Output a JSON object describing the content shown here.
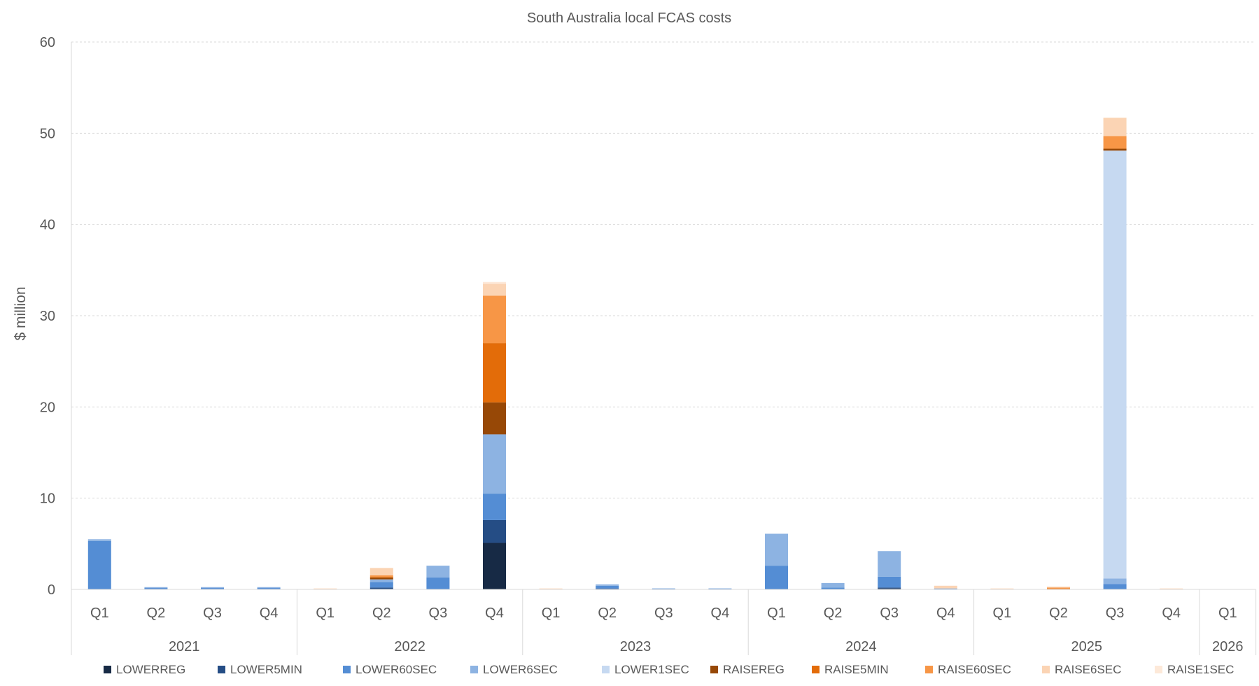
{
  "chart_data": {
    "type": "bar",
    "stacked": true,
    "title": "South Australia local FCAS costs",
    "xlabel": "",
    "ylabel": "$ million",
    "ylim": [
      0,
      60
    ],
    "yticks": [
      0,
      10,
      20,
      30,
      40,
      50,
      60
    ],
    "grid": "horizontal dashed",
    "legend_position": "bottom",
    "categories": [
      "Q1",
      "Q2",
      "Q3",
      "Q4",
      "Q1",
      "Q2",
      "Q3",
      "Q4",
      "Q1",
      "Q2",
      "Q3",
      "Q4",
      "Q1",
      "Q2",
      "Q3",
      "Q4",
      "Q1",
      "Q2",
      "Q3",
      "Q4",
      "Q1"
    ],
    "years": [
      {
        "label": "2021",
        "count": 4
      },
      {
        "label": "2022",
        "count": 4
      },
      {
        "label": "2023",
        "count": 4
      },
      {
        "label": "2024",
        "count": 4
      },
      {
        "label": "2025",
        "count": 4
      },
      {
        "label": "2026",
        "count": 1
      }
    ],
    "series": [
      {
        "name": "LOWERREG",
        "color": "#172a45",
        "values": [
          0,
          0,
          0,
          0,
          0,
          0.05,
          0,
          5.1,
          0,
          0.05,
          0,
          0,
          0,
          0,
          0.1,
          0,
          0,
          0,
          0,
          0,
          0
        ]
      },
      {
        "name": "LOWER5MIN",
        "color": "#254d85",
        "values": [
          0,
          0,
          0,
          0,
          0,
          0.15,
          0,
          2.5,
          0,
          0.05,
          0,
          0,
          0,
          0,
          0.1,
          0,
          0,
          0,
          0,
          0,
          0
        ]
      },
      {
        "name": "LOWER60SEC",
        "color": "#548dd4",
        "values": [
          5.3,
          0.15,
          0.15,
          0.15,
          0,
          0.6,
          1.3,
          2.9,
          0,
          0.3,
          0.1,
          0.1,
          2.6,
          0.2,
          1.2,
          0.1,
          0,
          0,
          0.6,
          0,
          0
        ]
      },
      {
        "name": "LOWER6SEC",
        "color": "#8db3e2",
        "values": [
          0.2,
          0.1,
          0.1,
          0.1,
          0,
          0.3,
          1.3,
          6.5,
          0,
          0.15,
          0,
          0,
          3.5,
          0.5,
          2.8,
          0,
          0,
          0,
          0.6,
          0,
          0
        ]
      },
      {
        "name": "LOWER1SEC",
        "color": "#c6d9f1",
        "values": [
          0,
          0,
          0,
          0,
          0,
          0,
          0,
          0,
          0,
          0,
          0,
          0,
          0,
          0,
          0,
          0,
          0,
          0,
          46.9,
          0,
          0
        ]
      },
      {
        "name": "RAISEREG",
        "color": "#974806",
        "values": [
          0,
          0,
          0,
          0,
          0,
          0.2,
          0,
          3.5,
          0,
          0,
          0,
          0,
          0,
          0,
          0,
          0,
          0,
          0.05,
          0.2,
          0,
          0
        ]
      },
      {
        "name": "RAISE5MIN",
        "color": "#e36c09",
        "values": [
          0,
          0,
          0,
          0,
          0,
          0.05,
          0,
          6.5,
          0,
          0,
          0,
          0,
          0,
          0,
          0,
          0,
          0,
          0.05,
          0,
          0,
          0
        ]
      },
      {
        "name": "RAISE60SEC",
        "color": "#f79646",
        "values": [
          0,
          0,
          0,
          0,
          0.05,
          0.2,
          0,
          5.2,
          0,
          0,
          0,
          0,
          0,
          0,
          0,
          0,
          0.05,
          0.1,
          1.4,
          0,
          0
        ]
      },
      {
        "name": "RAISE6SEC",
        "color": "#fbd4b4",
        "values": [
          0,
          0,
          0,
          0,
          0.05,
          0.8,
          0,
          1.3,
          0.1,
          0,
          0,
          0,
          0,
          0,
          0,
          0.3,
          0.05,
          0.1,
          2.0,
          0.1,
          0
        ]
      },
      {
        "name": "RAISE1SEC",
        "color": "#fde9d9",
        "values": [
          0,
          0,
          0,
          0,
          0,
          0,
          0,
          0.2,
          0,
          0,
          0,
          0,
          0,
          0,
          0,
          0,
          0,
          0,
          0,
          0,
          0
        ]
      }
    ]
  }
}
